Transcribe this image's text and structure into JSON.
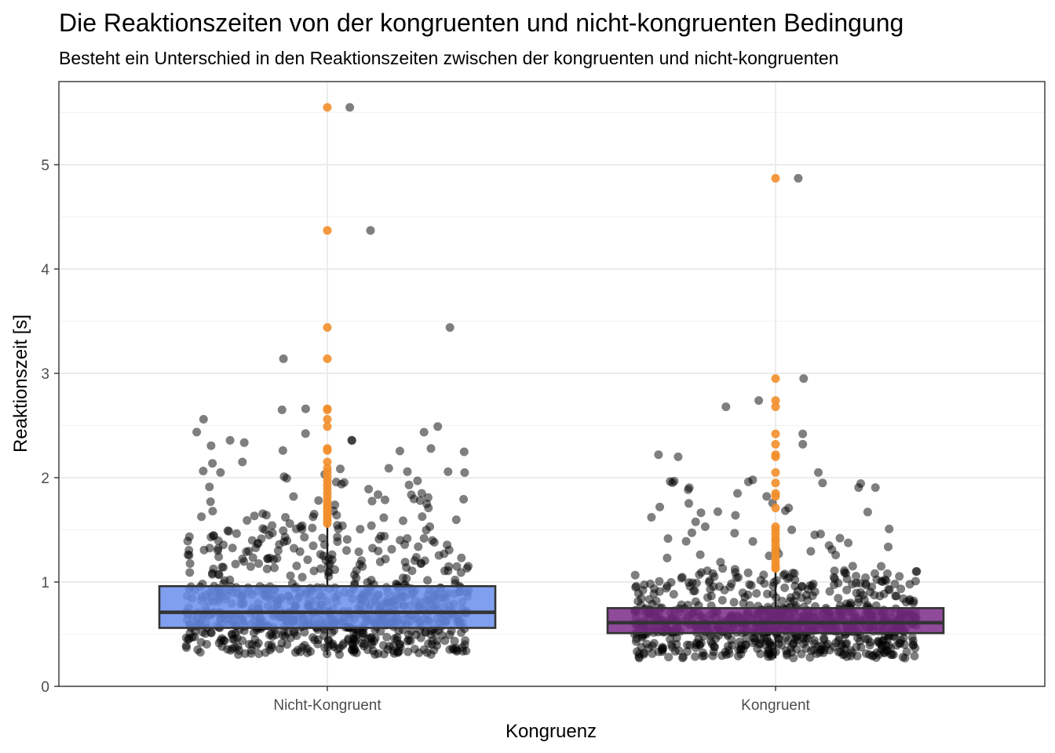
{
  "chart_data": {
    "type": "boxplot",
    "title": "Die Reaktionszeiten von der kongruenten und nicht-kongruenten Bedingung",
    "subtitle": "Besteht ein Unterschied in den Reaktionszeiten zwischen der kongruenten und nicht-kongruenten",
    "xlabel": "Kongruenz",
    "ylabel": "Reaktionszeit [s]",
    "ylim": [
      0,
      5.8
    ],
    "y_ticks": [
      "0",
      "1",
      "2",
      "3",
      "4",
      "5"
    ],
    "categories": [
      "Nicht-Kongruent",
      "Kongruent"
    ],
    "grid": true,
    "outlier_color": "#f28e2b",
    "point_color": "#000000",
    "series": [
      {
        "category": "Nicht-Kongruent",
        "color": "#6a8fec",
        "box": {
          "whisker_low": 0.3,
          "q1": 0.56,
          "median": 0.71,
          "q3": 0.96,
          "whisker_high": 1.55
        },
        "outliers": [
          5.55,
          4.37,
          3.44,
          3.14,
          2.66,
          2.65,
          2.56,
          2.49,
          2.28,
          2.26,
          2.15,
          2.09,
          2.05,
          2.01,
          1.97,
          1.93,
          1.89,
          1.85,
          1.81,
          1.77,
          1.74,
          1.71,
          1.68,
          1.65,
          1.62,
          1.59,
          1.56
        ]
      },
      {
        "category": "Kongruent",
        "color": "#7b2a88",
        "box": {
          "whisker_low": 0.27,
          "q1": 0.51,
          "median": 0.61,
          "q3": 0.75,
          "whisker_high": 1.11
        },
        "outliers": [
          4.87,
          2.95,
          2.74,
          2.68,
          2.42,
          2.32,
          2.22,
          2.2,
          2.05,
          1.95,
          1.85,
          1.82,
          1.71,
          1.53,
          1.5,
          1.46,
          1.42,
          1.39,
          1.35,
          1.31,
          1.27,
          1.23,
          1.19,
          1.15,
          1.13
        ]
      }
    ]
  }
}
